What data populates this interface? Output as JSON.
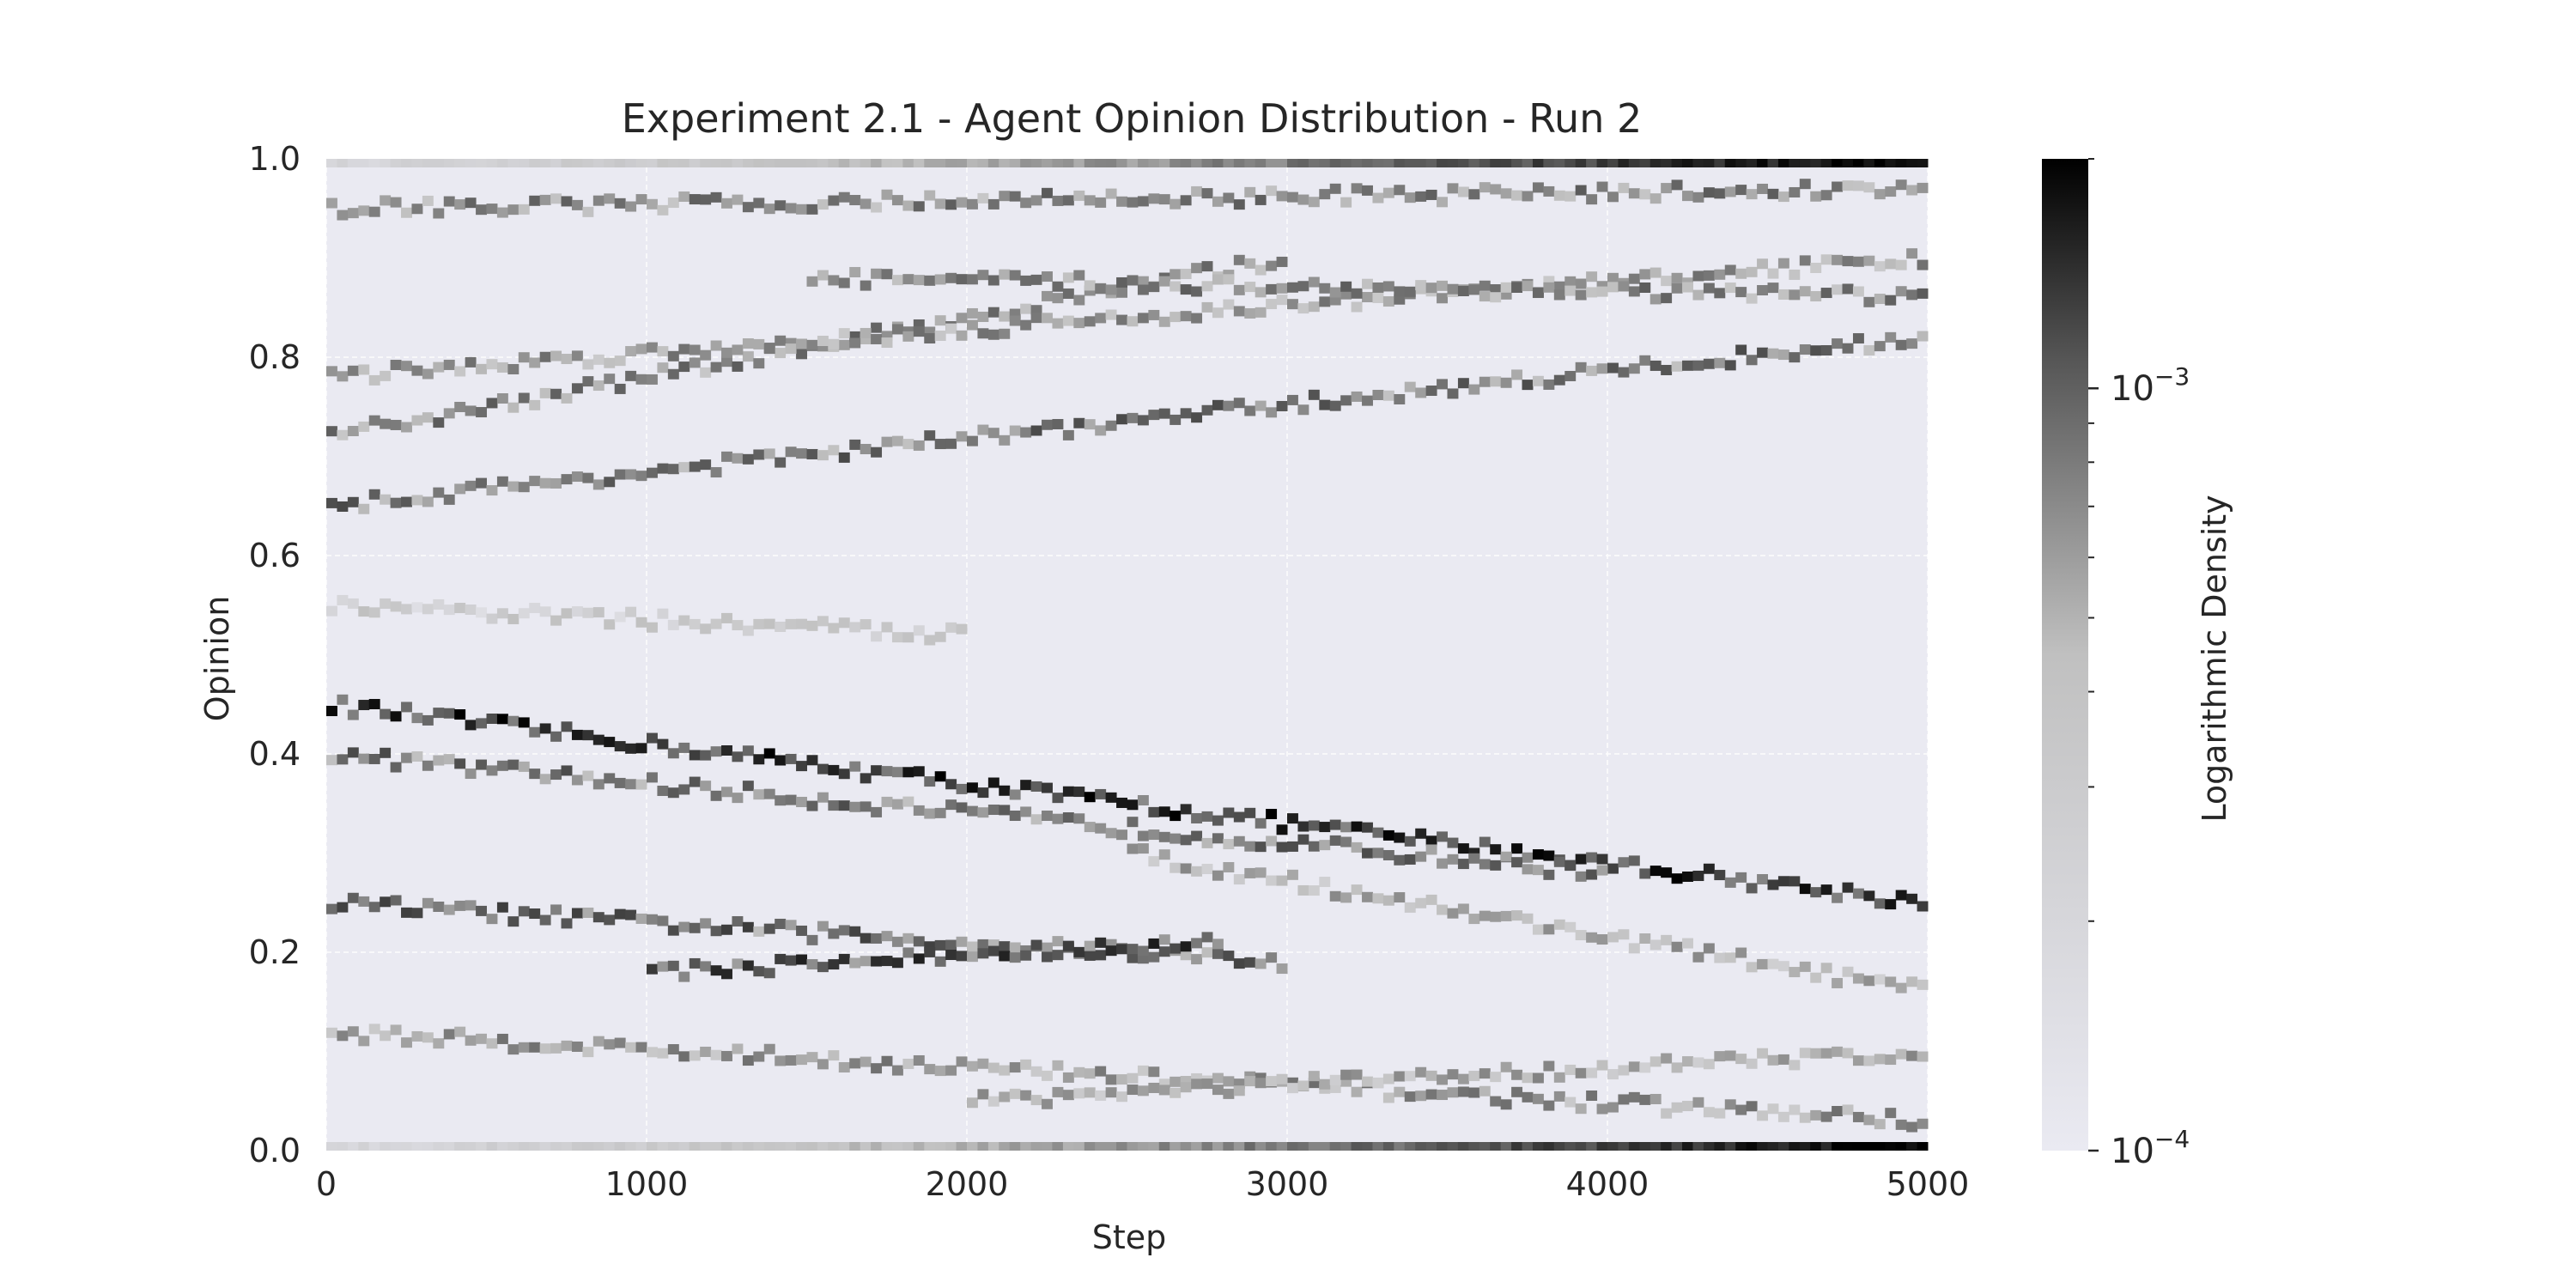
{
  "chart_data": {
    "type": "heatmap",
    "title": "Experiment 2.1 - Agent Opinion Distribution - Run 2",
    "xlabel": "Step",
    "ylabel": "Opinion",
    "xlim": [
      0,
      5000
    ],
    "ylim": [
      0.0,
      1.0
    ],
    "x_ticks": [
      "0",
      "1000",
      "2000",
      "3000",
      "4000",
      "5000"
    ],
    "y_ticks": [
      "0.0",
      "0.2",
      "0.4",
      "0.6",
      "0.8",
      "1.0"
    ],
    "grid": true,
    "colormap": "grayscale (light #eaeaf2 to black)",
    "colorbar": {
      "label": "Logarithmic Density",
      "scale": "log",
      "range": [
        0.0001,
        0.002
      ],
      "tick_labels": [
        {
          "base": "10",
          "exponent": "−4",
          "value": 0.0001
        },
        {
          "base": "10",
          "exponent": "−3",
          "value": 0.001
        }
      ]
    },
    "opinion_bands": [
      {
        "opinion_start": 0.45,
        "opinion_end": 0.25,
        "step_start": 0,
        "step_end": 5000,
        "density": 0.0014
      },
      {
        "opinion_start": 0.4,
        "opinion_end": 0.28,
        "step_start": 0,
        "step_end": 4000,
        "density": 0.0008
      },
      {
        "opinion_start": 0.25,
        "opinion_end": 0.19,
        "step_start": 0,
        "step_end": 3000,
        "density": 0.0009
      },
      {
        "opinion_start": 0.18,
        "opinion_end": 0.21,
        "step_start": 1000,
        "step_end": 2800,
        "density": 0.0011
      },
      {
        "opinion_start": 0.12,
        "opinion_end": 0.03,
        "step_start": 0,
        "step_end": 5000,
        "density": 0.0006
      },
      {
        "opinion_start": 0.05,
        "opinion_end": 0.1,
        "step_start": 2000,
        "step_end": 5000,
        "density": 0.0005
      },
      {
        "opinion_start": 0.3,
        "opinion_end": 0.16,
        "step_start": 2500,
        "step_end": 5000,
        "density": 0.0005
      },
      {
        "opinion_start": 0.72,
        "opinion_end": 0.9,
        "step_start": 0,
        "step_end": 3000,
        "density": 0.0007
      },
      {
        "opinion_start": 0.65,
        "opinion_end": 0.82,
        "step_start": 0,
        "step_end": 5000,
        "density": 0.0008
      },
      {
        "opinion_start": 0.78,
        "opinion_end": 0.9,
        "step_start": 0,
        "step_end": 5000,
        "density": 0.0006
      },
      {
        "opinion_start": 0.95,
        "opinion_end": 0.97,
        "step_start": 0,
        "step_end": 5000,
        "density": 0.0007
      },
      {
        "opinion_start": 0.88,
        "opinion_end": 0.86,
        "step_start": 1500,
        "step_end": 5000,
        "density": 0.0007
      },
      {
        "opinion_start": 0.55,
        "opinion_end": 0.52,
        "step_start": 0,
        "step_end": 2000,
        "density": 0.0003
      }
    ],
    "edge_bands": [
      {
        "opinion": 0.0,
        "density_start": 0.0002,
        "density_end": 0.0021
      },
      {
        "opinion": 1.0,
        "density_start": 0.0002,
        "density_end": 0.0021
      }
    ]
  }
}
